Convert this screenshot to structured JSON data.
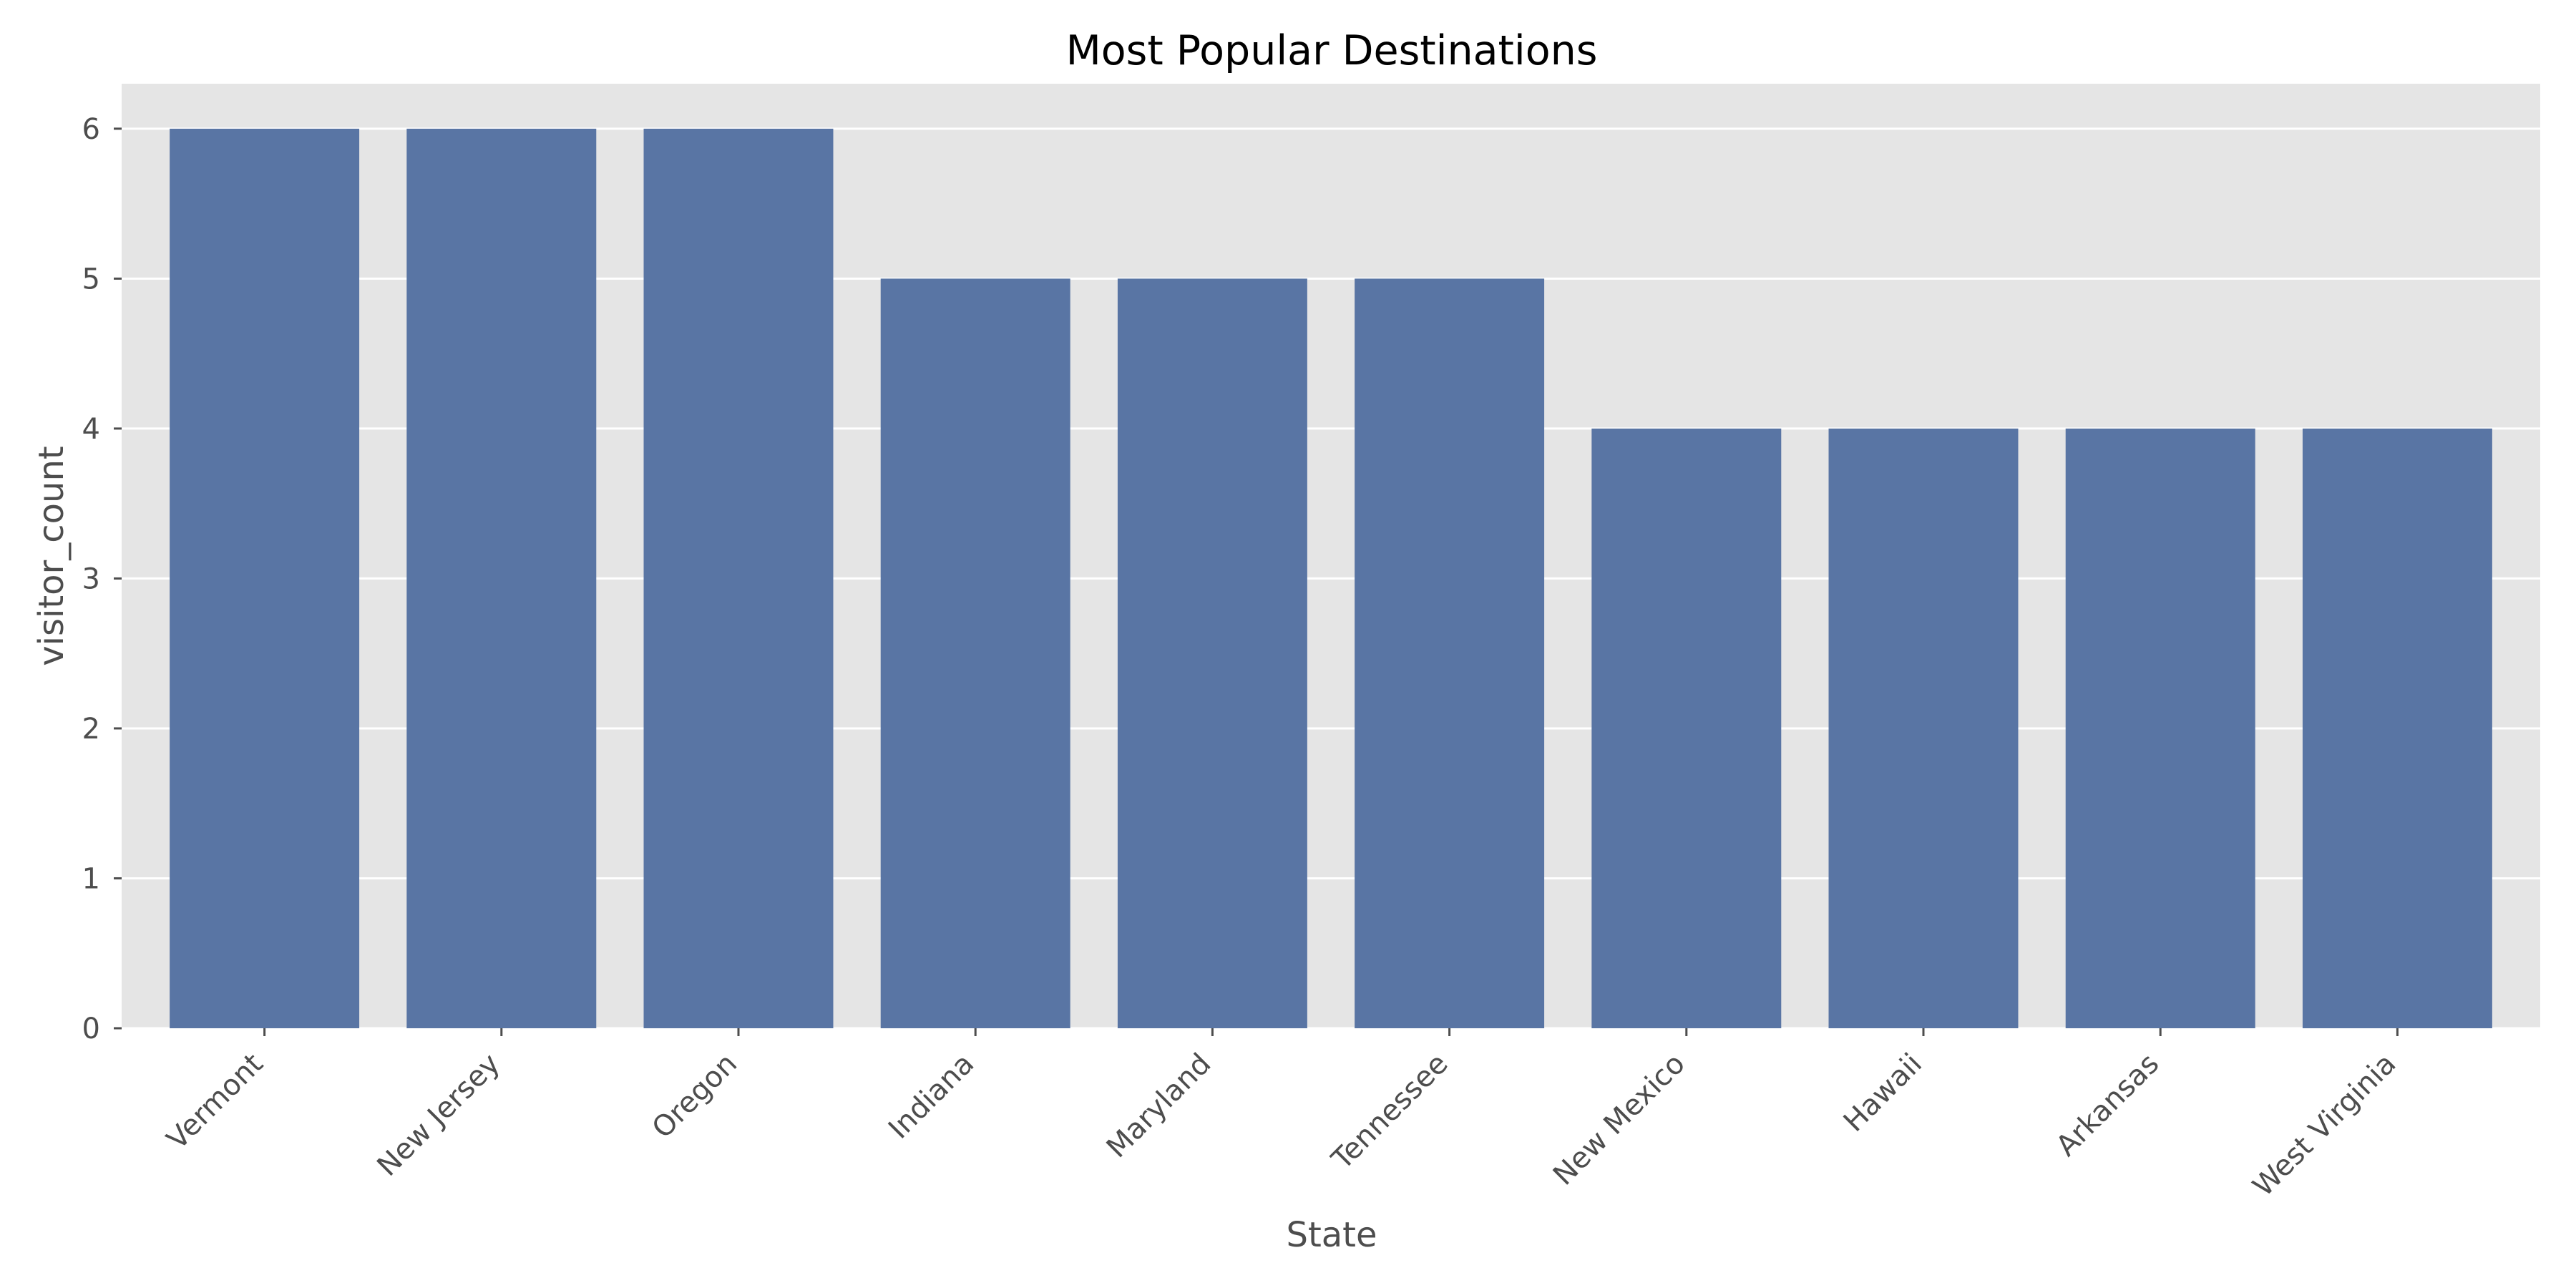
{
  "chart_data": {
    "type": "bar",
    "title": "Most Popular Destinations",
    "xlabel": "State",
    "ylabel": "visitor_count",
    "categories": [
      "Vermont",
      "New Jersey",
      "Oregon",
      "Indiana",
      "Maryland",
      "Tennessee",
      "New Mexico",
      "Hawaii",
      "Arkansas",
      "West Virginia"
    ],
    "values": [
      6,
      6,
      6,
      5,
      5,
      5,
      4,
      4,
      4,
      4
    ],
    "ylim": [
      0,
      6.3
    ],
    "yticks": [
      0,
      1,
      2,
      3,
      4,
      5,
      6
    ],
    "grid": true,
    "colors": {
      "bar": "#5975a4",
      "plot_background": "#e5e5e5",
      "grid": "#ffffff",
      "tick_text": "#4d4d4d",
      "title_text": "#000000"
    }
  }
}
